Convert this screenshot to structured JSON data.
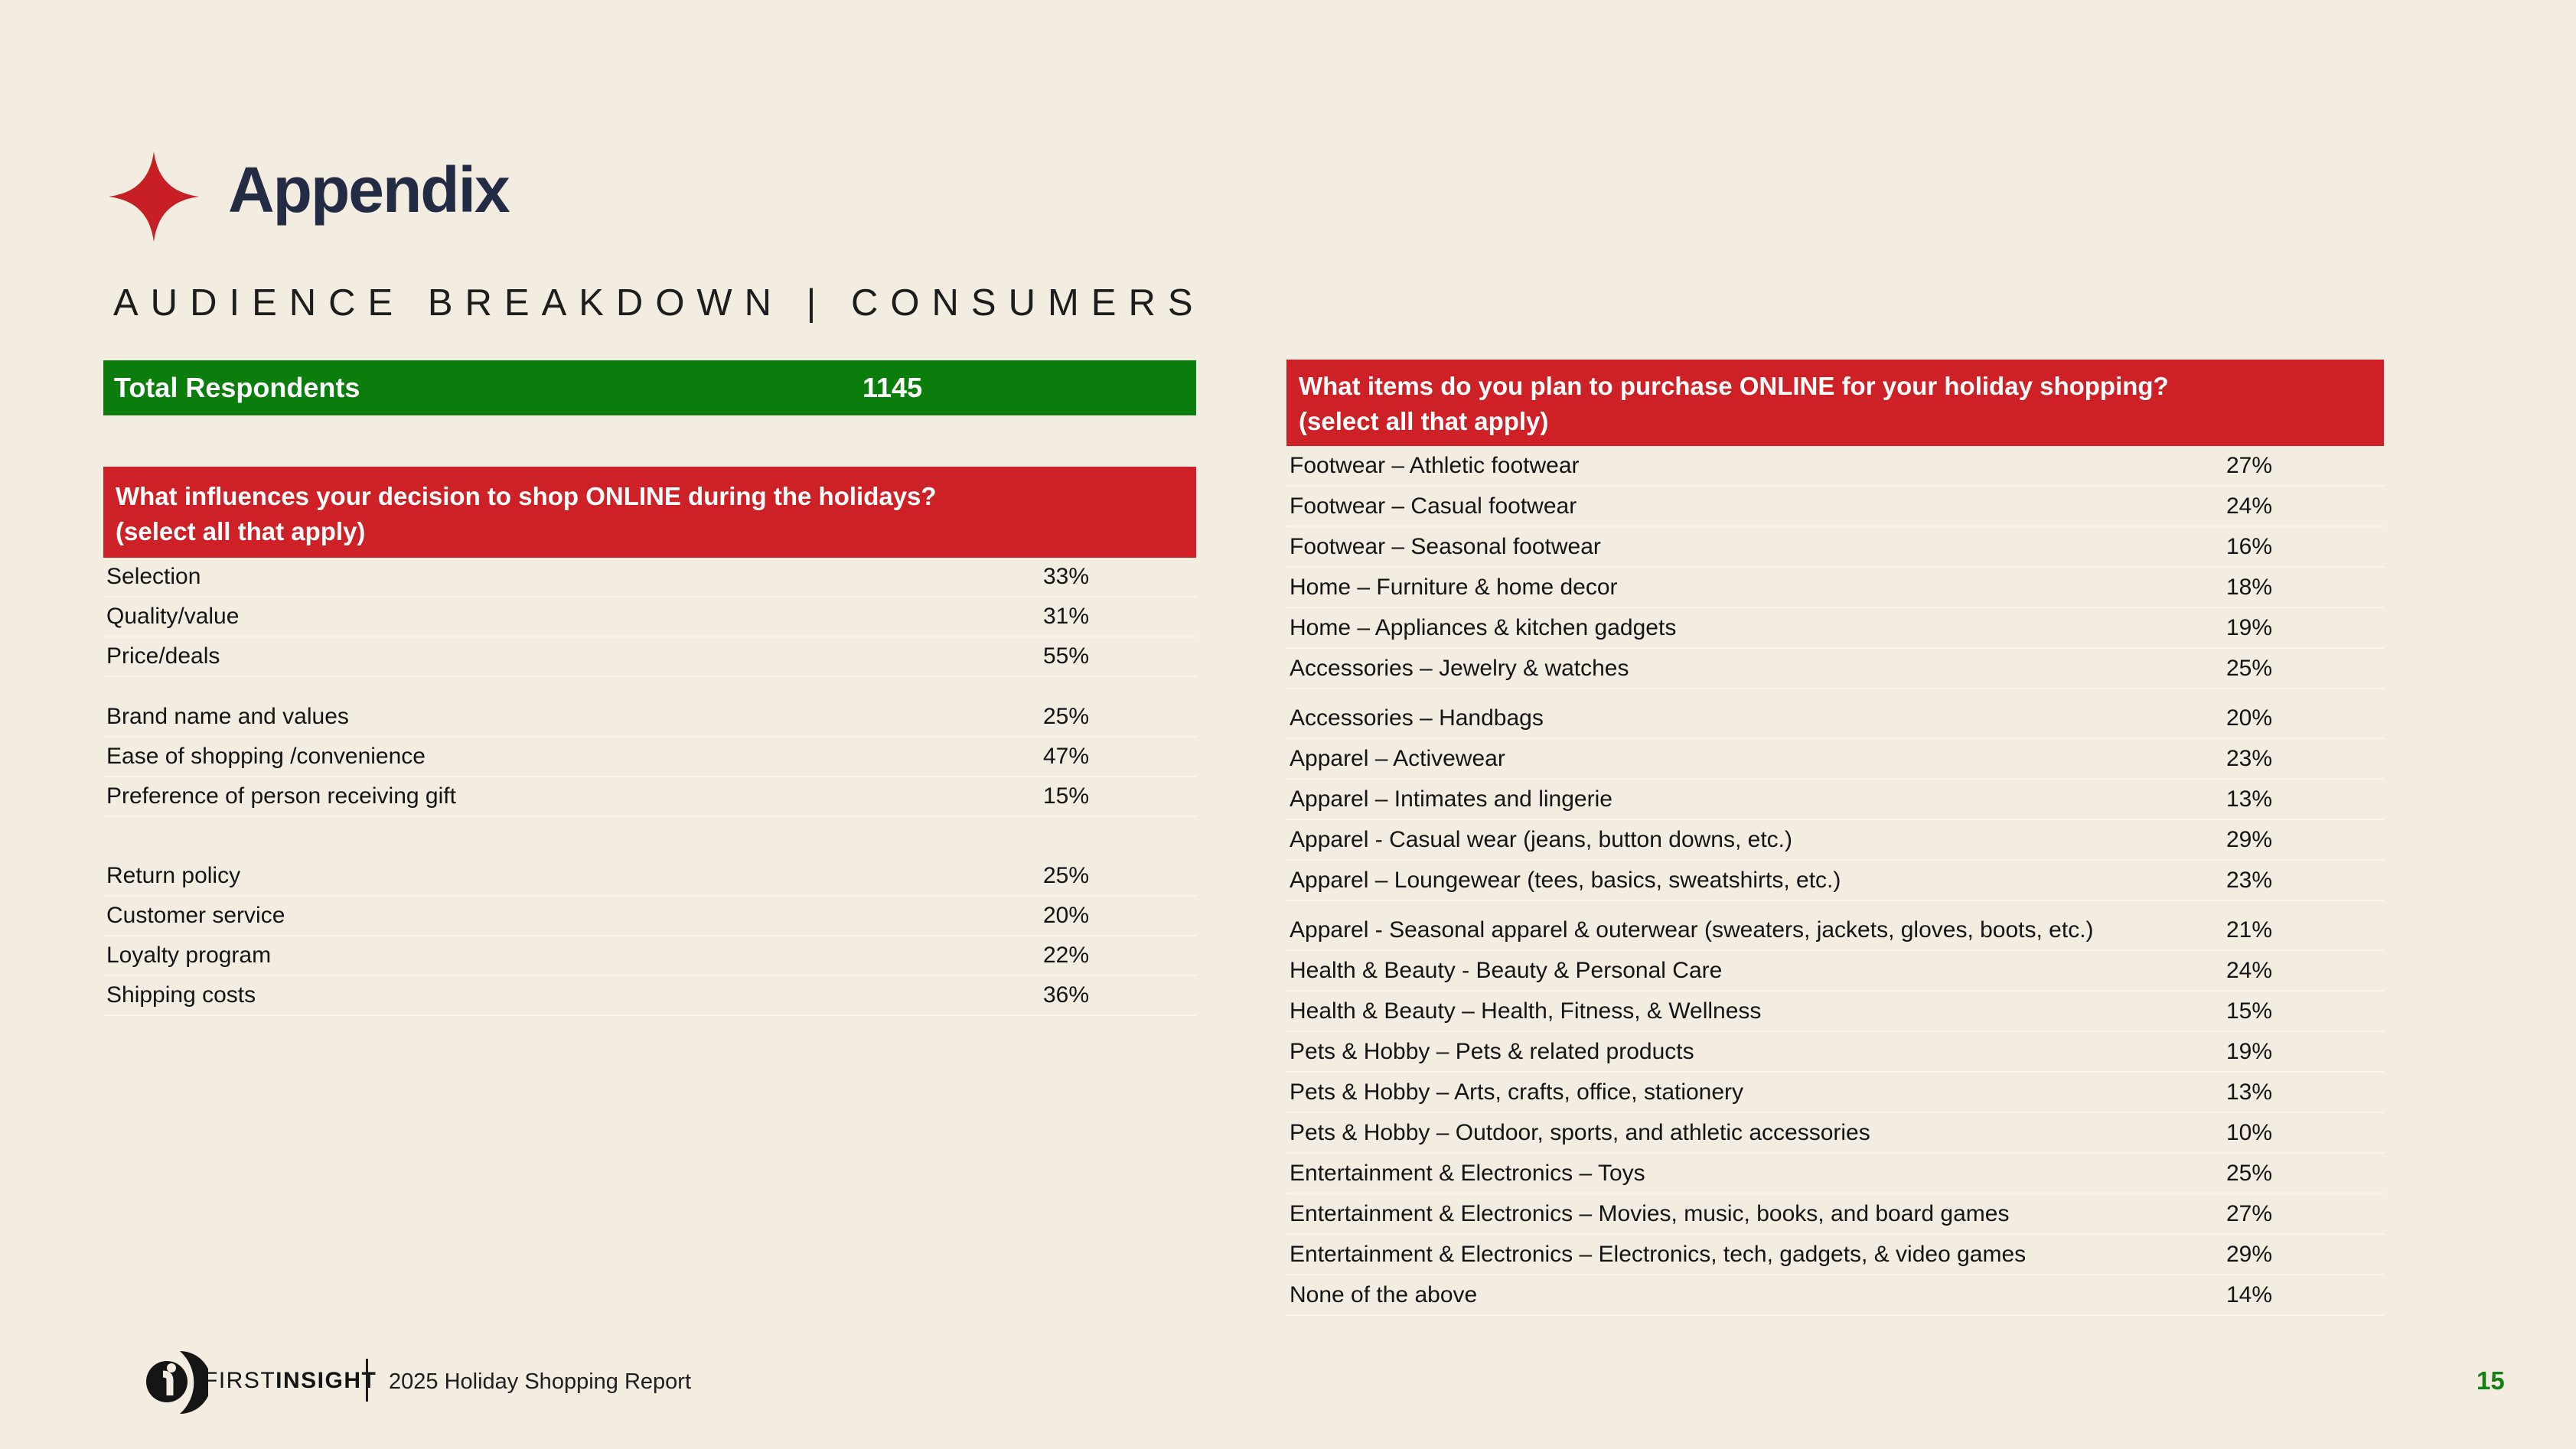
{
  "slide": {
    "title": "Appendix",
    "subtitle": "AUDIENCE BREAKDOWN | CONSUMERS",
    "page_number": "15"
  },
  "colors": {
    "background": "#F3EDE1",
    "header_red": "#CE2027",
    "bar_green": "#0A7D0C",
    "title_navy": "#232C44",
    "page_number_green": "#157F15"
  },
  "total_respondents": {
    "label": "Total Respondents",
    "value": "1145"
  },
  "left_table": {
    "question_line1": "What influences your decision to shop ONLINE during the holidays?",
    "question_line2": "(select all that apply)",
    "groups": [
      [
        {
          "label": "Selection",
          "value": "33%"
        },
        {
          "label": "Quality/value",
          "value": "31%"
        },
        {
          "label": "Price/deals",
          "value": "55%"
        }
      ],
      [
        {
          "label": "Brand name and values",
          "value": "25%"
        },
        {
          "label": "Ease of shopping /convenience",
          "value": "47%"
        },
        {
          "label": "Preference of person receiving gift",
          "value": "15%"
        }
      ],
      [
        {
          "label": "Return policy",
          "value": "25%"
        },
        {
          "label": "Customer service",
          "value": "20%"
        },
        {
          "label": "Loyalty program",
          "value": "22%"
        },
        {
          "label": "Shipping costs",
          "value": "36%"
        }
      ]
    ]
  },
  "right_table": {
    "question_line1": "What items do you plan to purchase ONLINE for your holiday shopping?",
    "question_line2": "(select all that apply)",
    "rows": [
      {
        "label": "Footwear – Athletic footwear",
        "value": "27%"
      },
      {
        "label": "Footwear – Casual footwear",
        "value": "24%"
      },
      {
        "label": "Footwear – Seasonal footwear",
        "value": "16%"
      },
      {
        "label": "Home – Furniture & home decor",
        "value": "18%"
      },
      {
        "label": "Home – Appliances & kitchen gadgets",
        "value": "19%"
      },
      {
        "label": "Accessories – Jewelry & watches",
        "value": "25%"
      },
      {
        "label": "Accessories – Handbags",
        "value": "20%",
        "gap_before": true
      },
      {
        "label": "Apparel – Activewear",
        "value": "23%"
      },
      {
        "label": "Apparel – Intimates and lingerie",
        "value": "13%"
      },
      {
        "label": "Apparel - Casual wear (jeans, button downs, etc.)",
        "value": "29%"
      },
      {
        "label": "Apparel – Loungewear (tees, basics, sweatshirts, etc.)",
        "value": "23%"
      },
      {
        "label": "Apparel - Seasonal apparel & outerwear (sweaters, jackets, gloves, boots, etc.)",
        "value": "21%",
        "gap_before": true
      },
      {
        "label": "Health & Beauty - Beauty & Personal Care",
        "value": "24%"
      },
      {
        "label": "Health & Beauty – Health, Fitness, & Wellness",
        "value": "15%"
      },
      {
        "label": "Pets & Hobby – Pets & related products",
        "value": "19%"
      },
      {
        "label": "Pets & Hobby – Arts, crafts, office, stationery",
        "value": "13%"
      },
      {
        "label": "Pets & Hobby – Outdoor, sports, and athletic accessories",
        "value": "10%"
      },
      {
        "label": "Entertainment & Electronics – Toys",
        "value": "25%"
      },
      {
        "label": "Entertainment & Electronics – Movies, music, books, and board games",
        "value": "27%"
      },
      {
        "label": "Entertainment & Electronics – Electronics, tech, gadgets, & video games",
        "value": "29%"
      },
      {
        "label": "None of the above",
        "value": "14%"
      }
    ]
  },
  "footer": {
    "brand_first": "FIRST",
    "brand_insight": "INSIGHT",
    "report_title": "2025 Holiday Shopping Report"
  }
}
